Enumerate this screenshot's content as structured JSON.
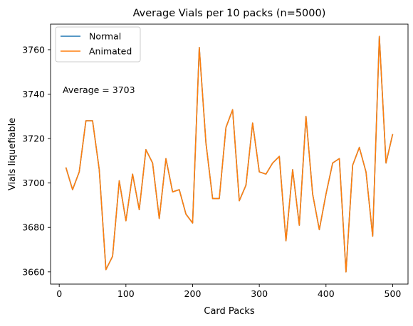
{
  "chart_data": {
    "type": "line",
    "title": "Average Vials per 10 packs (n=5000)",
    "xlabel": "Card Packs",
    "ylabel": "Vials liquefiable",
    "xlim": [
      -13,
      523
    ],
    "ylim": [
      3654.5,
      3771.5
    ],
    "xticks": [
      0,
      100,
      200,
      300,
      400,
      500
    ],
    "yticks": [
      3660,
      3680,
      3700,
      3720,
      3740,
      3760
    ],
    "grid": false,
    "legend_position": "top-left",
    "annotation": "Average = 3703",
    "series": [
      {
        "name": "Normal",
        "color": "#1f77b4",
        "x": [
          10,
          20,
          30,
          40,
          50,
          60,
          70,
          80,
          90,
          100,
          110,
          120,
          130,
          140,
          150,
          160,
          170,
          180,
          190,
          200,
          210,
          220,
          230,
          240,
          250,
          260,
          270,
          280,
          290,
          300,
          310,
          320,
          330,
          340,
          350,
          360,
          370,
          380,
          390,
          400,
          410,
          420,
          430,
          440,
          450,
          460,
          470,
          480,
          490,
          500
        ],
        "y": [
          3707,
          3697,
          3705,
          3728,
          3728,
          3706,
          3661,
          3667,
          3701,
          3683,
          3704,
          3688,
          3715,
          3709,
          3684,
          3711,
          3696,
          3697,
          3686,
          3682,
          3761,
          3718,
          3693,
          3693,
          3725,
          3733,
          3692,
          3699,
          3727,
          3705,
          3704,
          3709,
          3712,
          3674,
          3706,
          3681,
          3730,
          3695,
          3679,
          3695,
          3709,
          3711,
          3660,
          3708,
          3716,
          3705,
          3676,
          3766,
          3709,
          3722
        ]
      },
      {
        "name": "Animated",
        "color": "#ff7f0e",
        "x": [
          10,
          20,
          30,
          40,
          50,
          60,
          70,
          80,
          90,
          100,
          110,
          120,
          130,
          140,
          150,
          160,
          170,
          180,
          190,
          200,
          210,
          220,
          230,
          240,
          250,
          260,
          270,
          280,
          290,
          300,
          310,
          320,
          330,
          340,
          350,
          360,
          370,
          380,
          390,
          400,
          410,
          420,
          430,
          440,
          450,
          460,
          470,
          480,
          490,
          500
        ],
        "y": [
          3707,
          3697,
          3705,
          3728,
          3728,
          3706,
          3661,
          3667,
          3701,
          3683,
          3704,
          3688,
          3715,
          3709,
          3684,
          3711,
          3696,
          3697,
          3686,
          3682,
          3761,
          3718,
          3693,
          3693,
          3725,
          3733,
          3692,
          3699,
          3727,
          3705,
          3704,
          3709,
          3712,
          3674,
          3706,
          3681,
          3730,
          3695,
          3679,
          3695,
          3709,
          3711,
          3660,
          3708,
          3716,
          3705,
          3676,
          3766,
          3709,
          3722
        ]
      }
    ]
  }
}
